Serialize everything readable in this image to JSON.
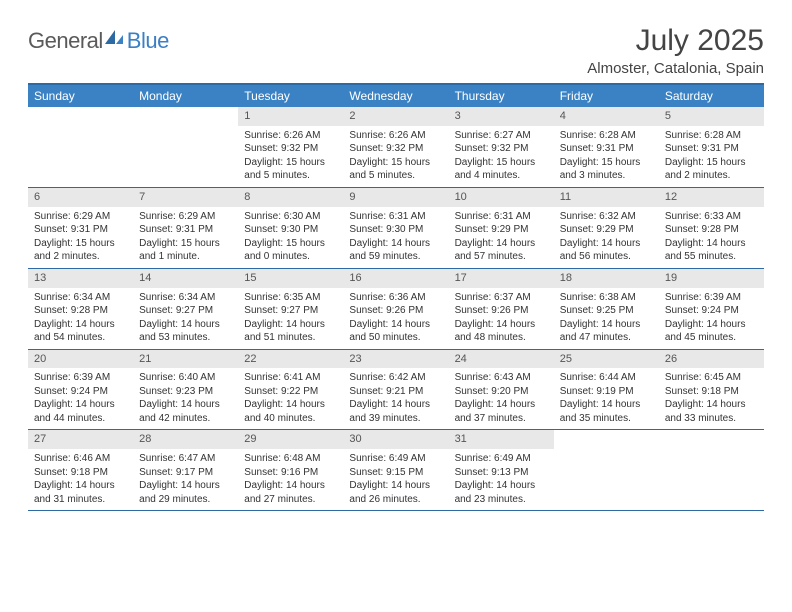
{
  "brand": {
    "part1": "General",
    "part2": "Blue"
  },
  "title": "July 2025",
  "location": "Almoster, Catalonia, Spain",
  "colors": {
    "header_bg": "#3b82c4",
    "rule": "#2d6aa3",
    "daynum_bg": "#e8e8e8",
    "text": "#333333"
  },
  "day_names": [
    "Sunday",
    "Monday",
    "Tuesday",
    "Wednesday",
    "Thursday",
    "Friday",
    "Saturday"
  ],
  "weeks": [
    [
      null,
      null,
      {
        "n": "1",
        "sr": "Sunrise: 6:26 AM",
        "ss": "Sunset: 9:32 PM",
        "dl": "Daylight: 15 hours and 5 minutes."
      },
      {
        "n": "2",
        "sr": "Sunrise: 6:26 AM",
        "ss": "Sunset: 9:32 PM",
        "dl": "Daylight: 15 hours and 5 minutes."
      },
      {
        "n": "3",
        "sr": "Sunrise: 6:27 AM",
        "ss": "Sunset: 9:32 PM",
        "dl": "Daylight: 15 hours and 4 minutes."
      },
      {
        "n": "4",
        "sr": "Sunrise: 6:28 AM",
        "ss": "Sunset: 9:31 PM",
        "dl": "Daylight: 15 hours and 3 minutes."
      },
      {
        "n": "5",
        "sr": "Sunrise: 6:28 AM",
        "ss": "Sunset: 9:31 PM",
        "dl": "Daylight: 15 hours and 2 minutes."
      }
    ],
    [
      {
        "n": "6",
        "sr": "Sunrise: 6:29 AM",
        "ss": "Sunset: 9:31 PM",
        "dl": "Daylight: 15 hours and 2 minutes."
      },
      {
        "n": "7",
        "sr": "Sunrise: 6:29 AM",
        "ss": "Sunset: 9:31 PM",
        "dl": "Daylight: 15 hours and 1 minute."
      },
      {
        "n": "8",
        "sr": "Sunrise: 6:30 AM",
        "ss": "Sunset: 9:30 PM",
        "dl": "Daylight: 15 hours and 0 minutes."
      },
      {
        "n": "9",
        "sr": "Sunrise: 6:31 AM",
        "ss": "Sunset: 9:30 PM",
        "dl": "Daylight: 14 hours and 59 minutes."
      },
      {
        "n": "10",
        "sr": "Sunrise: 6:31 AM",
        "ss": "Sunset: 9:29 PM",
        "dl": "Daylight: 14 hours and 57 minutes."
      },
      {
        "n": "11",
        "sr": "Sunrise: 6:32 AM",
        "ss": "Sunset: 9:29 PM",
        "dl": "Daylight: 14 hours and 56 minutes."
      },
      {
        "n": "12",
        "sr": "Sunrise: 6:33 AM",
        "ss": "Sunset: 9:28 PM",
        "dl": "Daylight: 14 hours and 55 minutes."
      }
    ],
    [
      {
        "n": "13",
        "sr": "Sunrise: 6:34 AM",
        "ss": "Sunset: 9:28 PM",
        "dl": "Daylight: 14 hours and 54 minutes."
      },
      {
        "n": "14",
        "sr": "Sunrise: 6:34 AM",
        "ss": "Sunset: 9:27 PM",
        "dl": "Daylight: 14 hours and 53 minutes."
      },
      {
        "n": "15",
        "sr": "Sunrise: 6:35 AM",
        "ss": "Sunset: 9:27 PM",
        "dl": "Daylight: 14 hours and 51 minutes."
      },
      {
        "n": "16",
        "sr": "Sunrise: 6:36 AM",
        "ss": "Sunset: 9:26 PM",
        "dl": "Daylight: 14 hours and 50 minutes."
      },
      {
        "n": "17",
        "sr": "Sunrise: 6:37 AM",
        "ss": "Sunset: 9:26 PM",
        "dl": "Daylight: 14 hours and 48 minutes."
      },
      {
        "n": "18",
        "sr": "Sunrise: 6:38 AM",
        "ss": "Sunset: 9:25 PM",
        "dl": "Daylight: 14 hours and 47 minutes."
      },
      {
        "n": "19",
        "sr": "Sunrise: 6:39 AM",
        "ss": "Sunset: 9:24 PM",
        "dl": "Daylight: 14 hours and 45 minutes."
      }
    ],
    [
      {
        "n": "20",
        "sr": "Sunrise: 6:39 AM",
        "ss": "Sunset: 9:24 PM",
        "dl": "Daylight: 14 hours and 44 minutes."
      },
      {
        "n": "21",
        "sr": "Sunrise: 6:40 AM",
        "ss": "Sunset: 9:23 PM",
        "dl": "Daylight: 14 hours and 42 minutes."
      },
      {
        "n": "22",
        "sr": "Sunrise: 6:41 AM",
        "ss": "Sunset: 9:22 PM",
        "dl": "Daylight: 14 hours and 40 minutes."
      },
      {
        "n": "23",
        "sr": "Sunrise: 6:42 AM",
        "ss": "Sunset: 9:21 PM",
        "dl": "Daylight: 14 hours and 39 minutes."
      },
      {
        "n": "24",
        "sr": "Sunrise: 6:43 AM",
        "ss": "Sunset: 9:20 PM",
        "dl": "Daylight: 14 hours and 37 minutes."
      },
      {
        "n": "25",
        "sr": "Sunrise: 6:44 AM",
        "ss": "Sunset: 9:19 PM",
        "dl": "Daylight: 14 hours and 35 minutes."
      },
      {
        "n": "26",
        "sr": "Sunrise: 6:45 AM",
        "ss": "Sunset: 9:18 PM",
        "dl": "Daylight: 14 hours and 33 minutes."
      }
    ],
    [
      {
        "n": "27",
        "sr": "Sunrise: 6:46 AM",
        "ss": "Sunset: 9:18 PM",
        "dl": "Daylight: 14 hours and 31 minutes."
      },
      {
        "n": "28",
        "sr": "Sunrise: 6:47 AM",
        "ss": "Sunset: 9:17 PM",
        "dl": "Daylight: 14 hours and 29 minutes."
      },
      {
        "n": "29",
        "sr": "Sunrise: 6:48 AM",
        "ss": "Sunset: 9:16 PM",
        "dl": "Daylight: 14 hours and 27 minutes."
      },
      {
        "n": "30",
        "sr": "Sunrise: 6:49 AM",
        "ss": "Sunset: 9:15 PM",
        "dl": "Daylight: 14 hours and 26 minutes."
      },
      {
        "n": "31",
        "sr": "Sunrise: 6:49 AM",
        "ss": "Sunset: 9:13 PM",
        "dl": "Daylight: 14 hours and 23 minutes."
      },
      null,
      null
    ]
  ]
}
